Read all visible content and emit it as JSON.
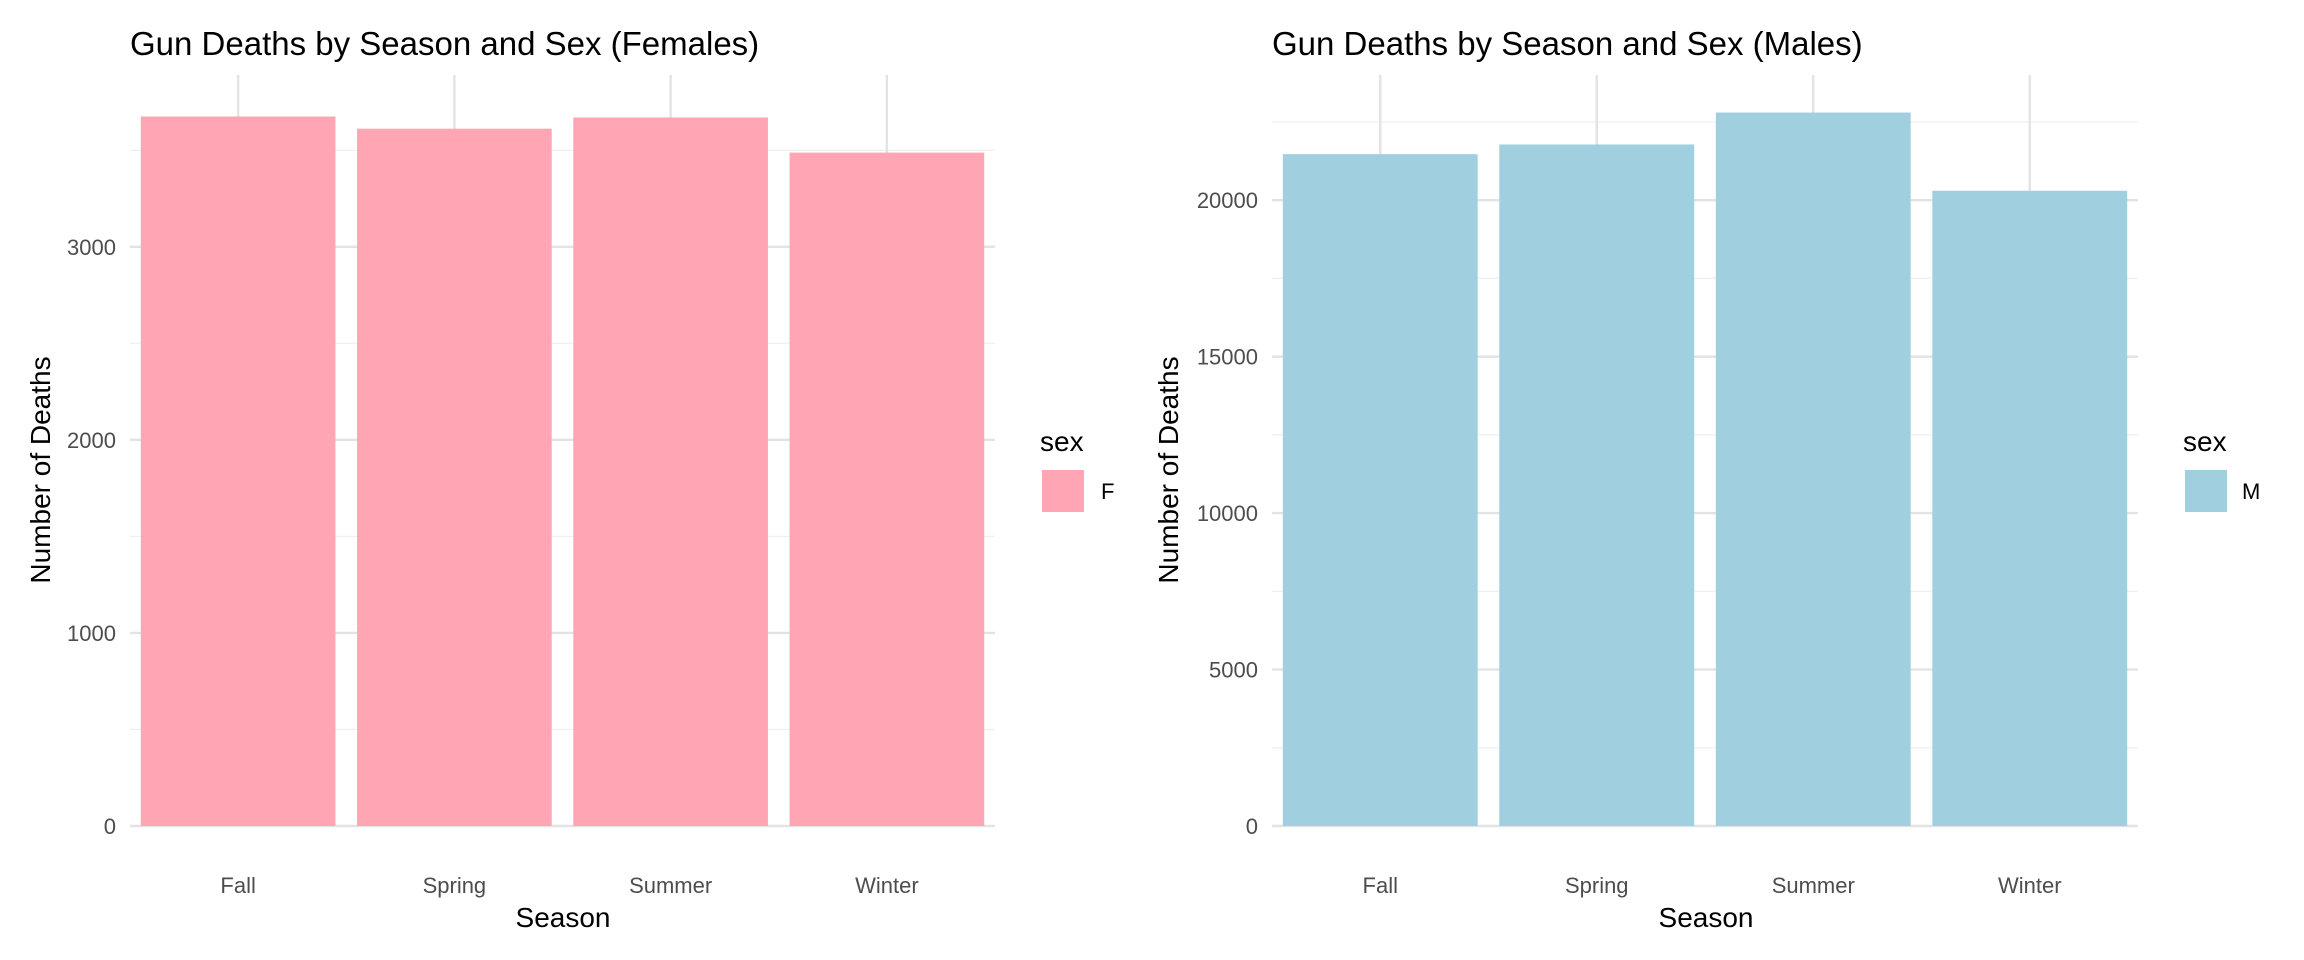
{
  "chart_data": [
    {
      "type": "bar",
      "title": "Gun Deaths by Season and Sex (Females)",
      "xlabel": "Season",
      "ylabel": "Number of Deaths",
      "categories": [
        "Fall",
        "Spring",
        "Summer",
        "Winter"
      ],
      "series": [
        {
          "name": "F",
          "values": [
            3675,
            3612,
            3670,
            3488
          ],
          "color": "#FFA5B4"
        }
      ],
      "ylim": [
        0,
        3890
      ],
      "y_ticks": [
        0,
        1000,
        2000,
        3000
      ],
      "y_tick_labels": [
        "0",
        "1000",
        "2000",
        "3000"
      ],
      "grid": true,
      "legend": {
        "title": "sex",
        "placement": "right"
      }
    },
    {
      "type": "bar",
      "title": "Gun Deaths by Season and Sex (Males)",
      "xlabel": "Season",
      "ylabel": "Number of Deaths",
      "categories": [
        "Fall",
        "Spring",
        "Summer",
        "Winter"
      ],
      "series": [
        {
          "name": "M",
          "values": [
            21470,
            21780,
            22800,
            20300
          ],
          "color": "#A0CFE0"
        }
      ],
      "ylim": [
        0,
        24000
      ],
      "y_ticks": [
        0,
        5000,
        10000,
        15000,
        20000
      ],
      "y_tick_labels": [
        "0",
        "5000",
        "10000",
        "15000",
        "20000"
      ],
      "grid": true,
      "legend": {
        "title": "sex",
        "placement": "right"
      }
    }
  ]
}
